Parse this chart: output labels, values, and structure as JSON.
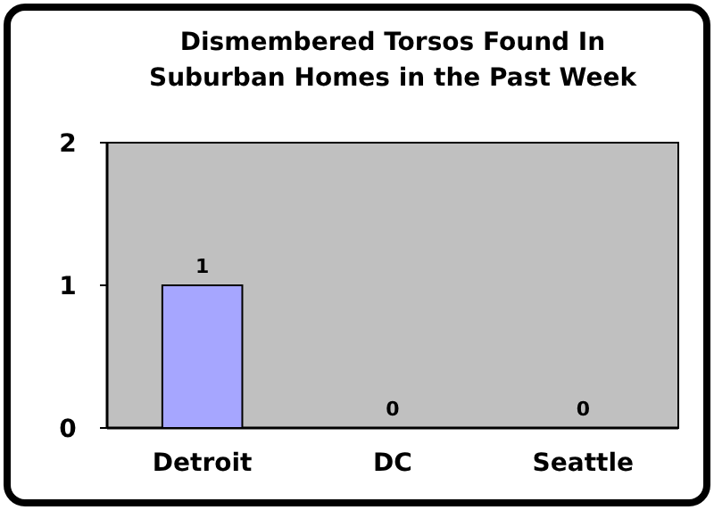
{
  "chart_data": {
    "type": "bar",
    "title": "Dismembered Torsos Found In Suburban Homes in the Past Week",
    "categories": [
      "Detroit",
      "DC",
      "Seattle"
    ],
    "values": [
      1,
      0,
      0
    ],
    "color": "#a6a6ff",
    "ylim": [
      0,
      2
    ],
    "yticks": [
      0,
      1,
      2
    ],
    "data_labels": true,
    "grid": false
  }
}
